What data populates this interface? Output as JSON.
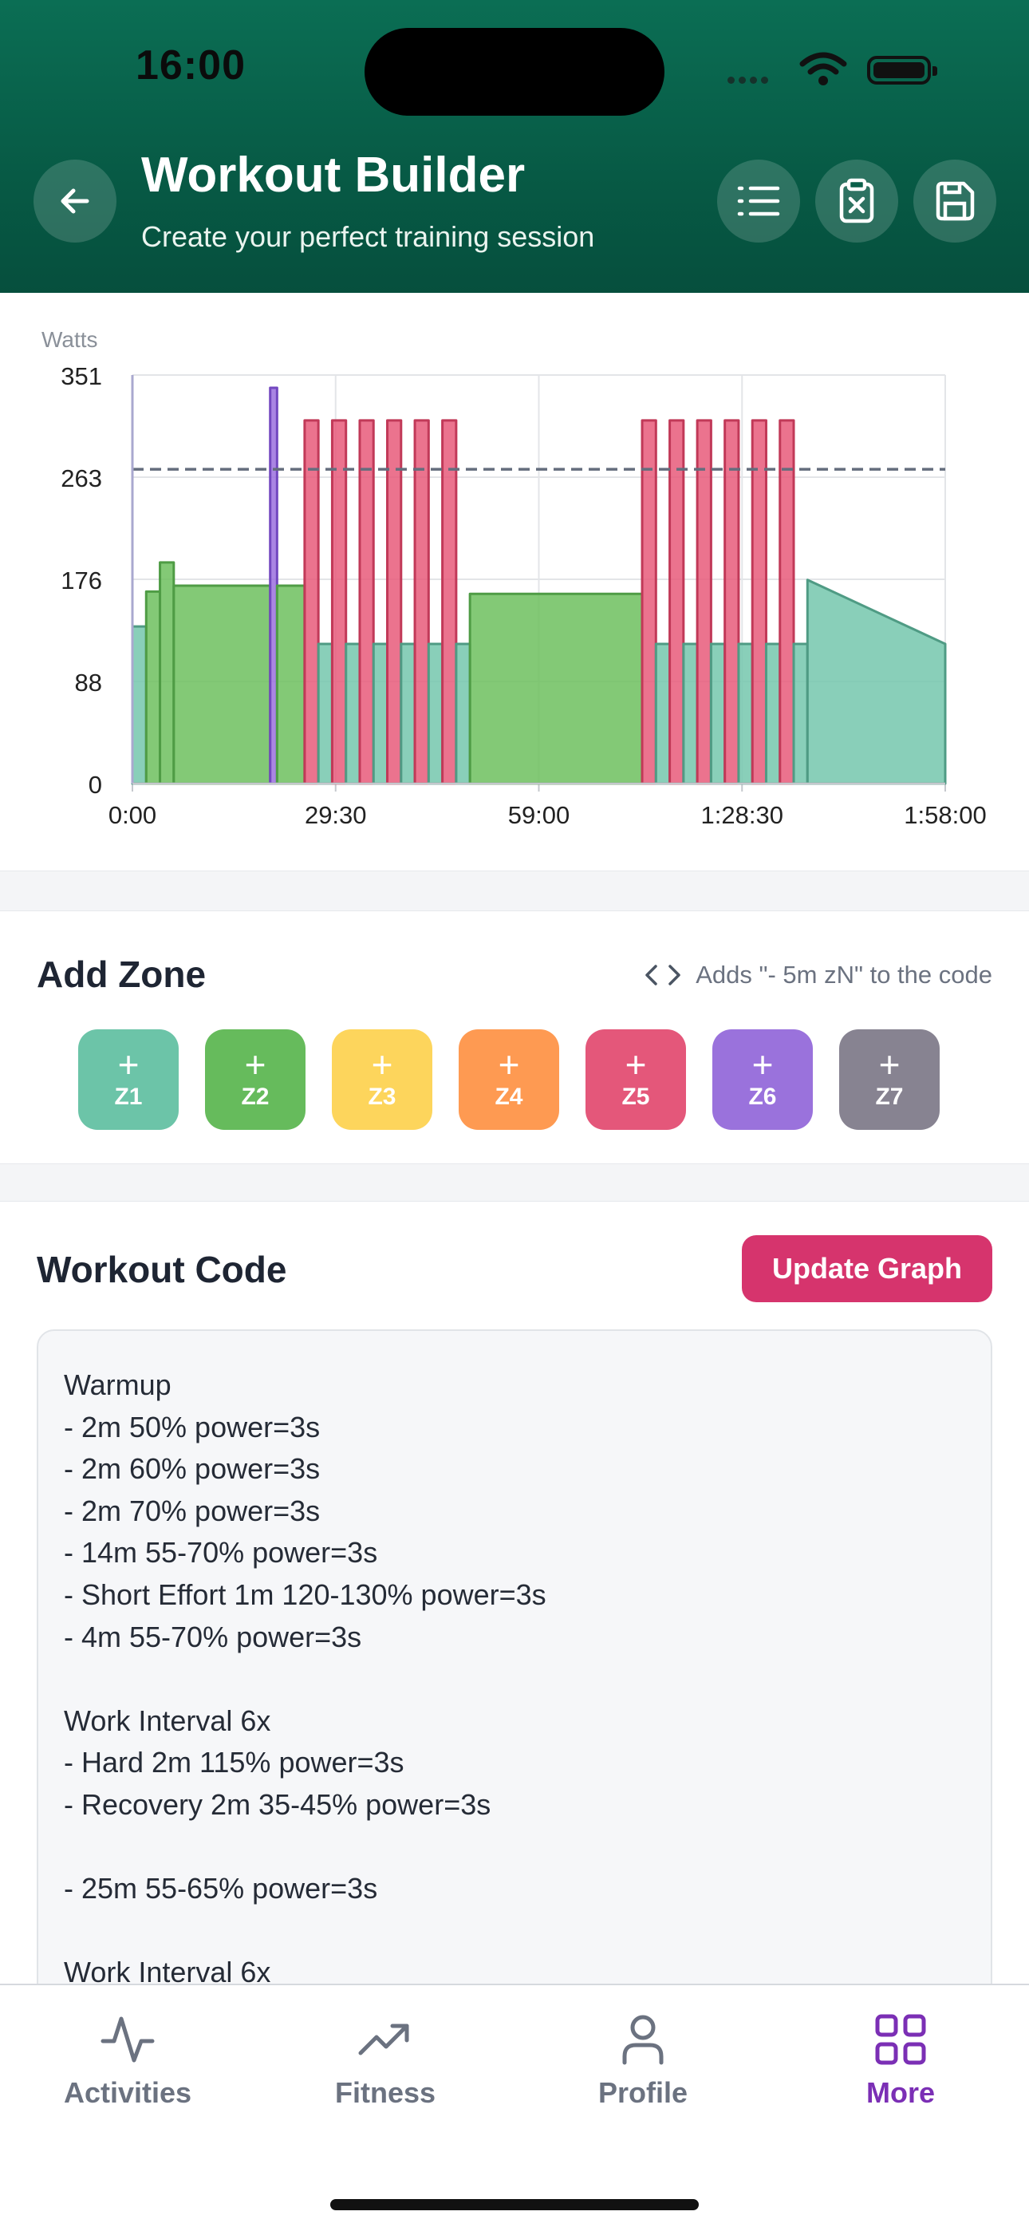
{
  "status": {
    "time": "16:00"
  },
  "header": {
    "title": "Workout Builder",
    "subtitle": "Create your perfect training session",
    "icons": [
      "arrow-left-icon",
      "list-icon",
      "clipboard-x-icon",
      "save-icon"
    ]
  },
  "chart_data": {
    "type": "area",
    "title": "",
    "ylabel": "Watts",
    "xlabel": "",
    "yticks": [
      "0",
      "88",
      "176",
      "263",
      "351"
    ],
    "xticks": [
      "0:00",
      "29:30",
      "59:00",
      "1:28:30",
      "1:58:00"
    ],
    "ylim": [
      0,
      351
    ],
    "xlim_minutes": [
      0,
      118
    ],
    "ftp_line_watts": 270,
    "grid": true,
    "zone_colors": {
      "Z1": "#74c7ad",
      "Z2": "#6dbf5e",
      "Z3": "#ffd25e",
      "Z4": "#ff9b4f",
      "Z5": "#e85a7a",
      "Z6": "#9b70de",
      "Z7": "#8c8794"
    },
    "segments": [
      {
        "start": 0,
        "end": 2,
        "from": 135,
        "to": 135,
        "zone": "Z1"
      },
      {
        "start": 2,
        "end": 4,
        "from": 165,
        "to": 165,
        "zone": "Z2"
      },
      {
        "start": 4,
        "end": 6,
        "from": 190,
        "to": 190,
        "zone": "Z2"
      },
      {
        "start": 6,
        "end": 20,
        "from": 170,
        "to": 170,
        "zone": "Z2"
      },
      {
        "start": 20,
        "end": 21,
        "from": 340,
        "to": 340,
        "zone": "Z6"
      },
      {
        "start": 21,
        "end": 25,
        "from": 170,
        "to": 170,
        "zone": "Z2"
      },
      {
        "start": 25,
        "end": 27,
        "from": 312,
        "to": 312,
        "zone": "Z5"
      },
      {
        "start": 27,
        "end": 29,
        "from": 120,
        "to": 120,
        "zone": "Z1"
      },
      {
        "start": 29,
        "end": 31,
        "from": 312,
        "to": 312,
        "zone": "Z5"
      },
      {
        "start": 31,
        "end": 33,
        "from": 120,
        "to": 120,
        "zone": "Z1"
      },
      {
        "start": 33,
        "end": 35,
        "from": 312,
        "to": 312,
        "zone": "Z5"
      },
      {
        "start": 35,
        "end": 37,
        "from": 120,
        "to": 120,
        "zone": "Z1"
      },
      {
        "start": 37,
        "end": 39,
        "from": 312,
        "to": 312,
        "zone": "Z5"
      },
      {
        "start": 39,
        "end": 41,
        "from": 120,
        "to": 120,
        "zone": "Z1"
      },
      {
        "start": 41,
        "end": 43,
        "from": 312,
        "to": 312,
        "zone": "Z5"
      },
      {
        "start": 43,
        "end": 45,
        "from": 120,
        "to": 120,
        "zone": "Z1"
      },
      {
        "start": 45,
        "end": 47,
        "from": 312,
        "to": 312,
        "zone": "Z5"
      },
      {
        "start": 47,
        "end": 49,
        "from": 120,
        "to": 120,
        "zone": "Z1"
      },
      {
        "start": 49,
        "end": 74,
        "from": 163,
        "to": 163,
        "zone": "Z2"
      },
      {
        "start": 74,
        "end": 76,
        "from": 312,
        "to": 312,
        "zone": "Z5"
      },
      {
        "start": 76,
        "end": 78,
        "from": 120,
        "to": 120,
        "zone": "Z1"
      },
      {
        "start": 78,
        "end": 80,
        "from": 312,
        "to": 312,
        "zone": "Z5"
      },
      {
        "start": 80,
        "end": 82,
        "from": 120,
        "to": 120,
        "zone": "Z1"
      },
      {
        "start": 82,
        "end": 84,
        "from": 312,
        "to": 312,
        "zone": "Z5"
      },
      {
        "start": 84,
        "end": 86,
        "from": 120,
        "to": 120,
        "zone": "Z1"
      },
      {
        "start": 86,
        "end": 88,
        "from": 312,
        "to": 312,
        "zone": "Z5"
      },
      {
        "start": 88,
        "end": 90,
        "from": 120,
        "to": 120,
        "zone": "Z1"
      },
      {
        "start": 90,
        "end": 92,
        "from": 312,
        "to": 312,
        "zone": "Z5"
      },
      {
        "start": 92,
        "end": 94,
        "from": 120,
        "to": 120,
        "zone": "Z1"
      },
      {
        "start": 94,
        "end": 96,
        "from": 312,
        "to": 312,
        "zone": "Z5"
      },
      {
        "start": 96,
        "end": 98,
        "from": 120,
        "to": 120,
        "zone": "Z1"
      },
      {
        "start": 98,
        "end": 118,
        "from": 175,
        "to": 120,
        "zone": "Z1"
      }
    ]
  },
  "zones": {
    "title": "Add Zone",
    "hint": "Adds \"- 5m zN\" to the code",
    "items": [
      {
        "label": "Z1",
        "plus": "+",
        "color": "#6cc4a8"
      },
      {
        "label": "Z2",
        "plus": "+",
        "color": "#66bb5c"
      },
      {
        "label": "Z3",
        "plus": "+",
        "color": "#fdd55c"
      },
      {
        "label": "Z4",
        "plus": "+",
        "color": "#fe9a52"
      },
      {
        "label": "Z5",
        "plus": "+",
        "color": "#e4577a"
      },
      {
        "label": "Z6",
        "plus": "+",
        "color": "#9a72dc"
      },
      {
        "label": "Z7",
        "plus": "+",
        "color": "#878391"
      }
    ]
  },
  "code": {
    "title": "Workout Code",
    "update_label": "Update Graph",
    "lines": [
      "Warmup",
      "- 2m 50% power=3s",
      "- 2m 60% power=3s",
      "- 2m 70% power=3s",
      "- 14m 55-70% power=3s",
      "- Short Effort 1m 120-130% power=3s",
      "- 4m 55-70% power=3s",
      "",
      "Work Interval 6x",
      "- Hard 2m 115% power=3s",
      "- Recovery 2m 35-45% power=3s",
      "",
      "- 25m 55-65% power=3s",
      "",
      "Work Interval 6x"
    ]
  },
  "tabs": [
    {
      "label": "Activities",
      "icon": "activity-icon",
      "active": false
    },
    {
      "label": "Fitness",
      "icon": "trending-up-icon",
      "active": false
    },
    {
      "label": "Profile",
      "icon": "user-icon",
      "active": false
    },
    {
      "label": "More",
      "icon": "grid-icon",
      "active": true
    }
  ]
}
